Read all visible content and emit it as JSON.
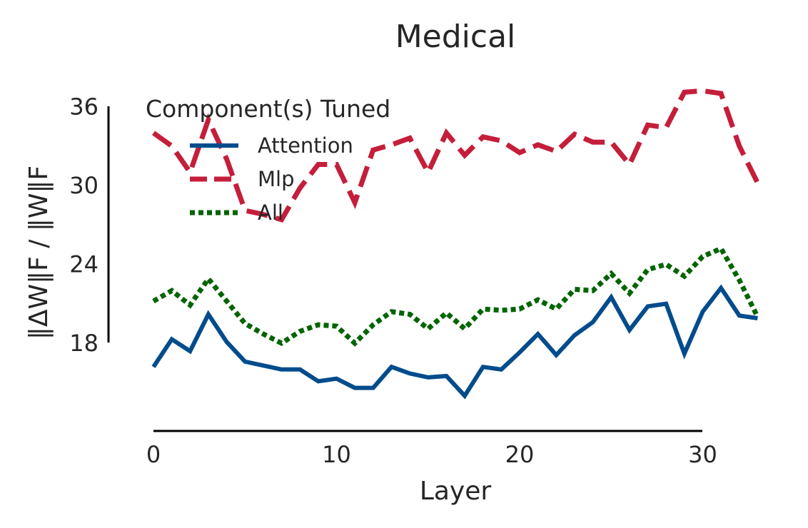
{
  "chart_data": {
    "type": "line",
    "title": "Medical",
    "xlabel": "Layer",
    "ylabel": "‖ΔW‖F / ‖W‖F",
    "xlim": [
      0,
      33
    ],
    "ylim": [
      13.4,
      37.5
    ],
    "x_ticks": [
      0,
      10,
      20,
      30
    ],
    "y_ticks": [
      18,
      24,
      30,
      36
    ],
    "x_tick_labels": [
      "0",
      "10",
      "20",
      "30"
    ],
    "y_tick_labels": [
      "18",
      "24",
      "30",
      "36"
    ],
    "grid": false,
    "legend": {
      "title": "Component(s) Tuned",
      "placement": "top-left"
    },
    "x": [
      0,
      1,
      2,
      3,
      4,
      5,
      6,
      7,
      8,
      9,
      10,
      11,
      12,
      13,
      14,
      15,
      16,
      17,
      18,
      19,
      20,
      21,
      22,
      23,
      24,
      25,
      26,
      27,
      28,
      29,
      30,
      31,
      32,
      33
    ],
    "series": [
      {
        "name": "Attention",
        "color": "#004c8c",
        "style": "solid",
        "values": [
          16.2,
          18.3,
          17.4,
          20.2,
          18.1,
          16.6,
          16.3,
          16.0,
          16.0,
          15.1,
          15.3,
          14.6,
          14.6,
          16.2,
          15.7,
          15.4,
          15.5,
          14.0,
          16.2,
          16.0,
          17.3,
          18.7,
          17.1,
          18.6,
          19.6,
          21.5,
          19.0,
          20.8,
          21.0,
          17.2,
          20.4,
          22.2,
          20.1,
          19.9
        ]
      },
      {
        "name": "Mlp",
        "color": "#c41e3a",
        "style": "dashed",
        "values": [
          34.0,
          33.0,
          31.0,
          35.0,
          32.0,
          28.1,
          27.8,
          27.4,
          29.8,
          31.6,
          31.6,
          28.7,
          32.7,
          33.1,
          33.6,
          31.0,
          34.0,
          32.3,
          33.7,
          33.4,
          32.5,
          33.1,
          32.6,
          33.9,
          33.3,
          33.3,
          31.6,
          34.6,
          34.4,
          37.1,
          37.2,
          37.0,
          33.0,
          30.2
        ]
      },
      {
        "name": "All",
        "color": "#006400",
        "style": "dotted",
        "values": [
          21.2,
          22.0,
          20.9,
          22.9,
          21.2,
          19.5,
          18.7,
          18.0,
          18.9,
          19.4,
          19.3,
          18.0,
          19.4,
          20.4,
          20.2,
          19.1,
          20.3,
          19.1,
          20.6,
          20.5,
          20.6,
          21.3,
          20.6,
          22.1,
          22.0,
          23.3,
          21.8,
          23.6,
          24.0,
          23.1,
          24.6,
          25.2,
          22.8,
          20.0
        ]
      }
    ]
  }
}
